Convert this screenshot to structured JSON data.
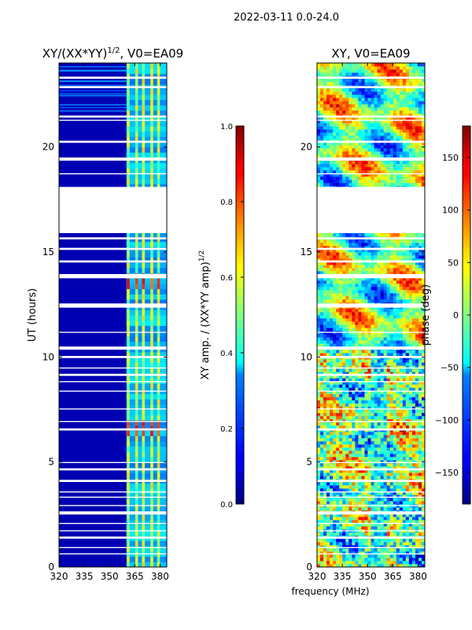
{
  "suptitle": "2022-03-11 0.0-24.0",
  "chart_data": [
    {
      "type": "heatmap",
      "title": "XY/(XX*YY)",
      "title_exponent": "1/2",
      "title_suffix": ", V0=EA09",
      "xlabel": "",
      "ylabel": "UT (hours)",
      "xlim": [
        320,
        384
      ],
      "ylim": [
        0,
        24
      ],
      "xticks": [
        "320",
        "335",
        "350",
        "365",
        "380"
      ],
      "xtick_values": [
        320,
        335,
        350,
        365,
        380
      ],
      "yticks": [
        "0",
        "5",
        "10",
        "15",
        "20"
      ],
      "ytick_values": [
        0,
        5,
        10,
        15,
        20
      ],
      "background_value": 0.05,
      "active_band_mhz": [
        360,
        384
      ],
      "active_band_value": 0.3,
      "bright_channel_columns_mhz": [
        361,
        366,
        370,
        375,
        379
      ],
      "bright_channel_value": 0.55,
      "hot_spot_hours": [
        6.6,
        13.4
      ],
      "colorbar": {
        "label": "XY amp. / (XX*YY amp)",
        "label_exponent": "1/2",
        "range": [
          0.0,
          1.0
        ],
        "ticks": [
          "0.0",
          "0.2",
          "0.4",
          "0.6",
          "0.8",
          "1.0"
        ],
        "tick_values": [
          0.0,
          0.2,
          0.4,
          0.6,
          0.8,
          1.0
        ]
      }
    },
    {
      "type": "heatmap",
      "title": "XY, V0=EA09",
      "xlabel": "frequency (MHz)",
      "ylabel": "",
      "xlim": [
        320,
        384
      ],
      "ylim": [
        0,
        24
      ],
      "xticks": [
        "320",
        "335",
        "350",
        "365",
        "380"
      ],
      "xtick_values": [
        320,
        335,
        350,
        365,
        380
      ],
      "yticks": [
        "0",
        "5",
        "10",
        "15",
        "20"
      ],
      "ytick_values": [
        0,
        5,
        10,
        15,
        20
      ],
      "colorbar": {
        "label": "phase (deg)",
        "range": [
          -180,
          180
        ],
        "ticks": [
          "150",
          "100",
          "50",
          "0",
          "−50",
          "−100",
          "−150"
        ],
        "tick_values": [
          150,
          100,
          50,
          0,
          -50,
          -100,
          -150
        ]
      }
    }
  ],
  "flagged_gaps_hours": [
    [
      18.1,
      15.9
    ],
    [
      23.35,
      23.25
    ],
    [
      22.9,
      22.8
    ],
    [
      21.5,
      21.4
    ],
    [
      21.3,
      21.25
    ],
    [
      20.3,
      20.2
    ],
    [
      19.5,
      19.35
    ],
    [
      18.75,
      18.7
    ],
    [
      15.7,
      15.6
    ],
    [
      15.2,
      15.1
    ],
    [
      14.6,
      14.5
    ],
    [
      13.95,
      13.75
    ],
    [
      12.55,
      12.35
    ],
    [
      11.2,
      11.15
    ],
    [
      10.5,
      10.35
    ],
    [
      10.05,
      9.95
    ],
    [
      9.5,
      9.45
    ],
    [
      9.2,
      9.1
    ],
    [
      8.85,
      8.8
    ],
    [
      8.4,
      8.35
    ],
    [
      7.55,
      7.5
    ],
    [
      6.95,
      6.9
    ],
    [
      6.6,
      6.5
    ],
    [
      5.0,
      4.95
    ],
    [
      4.7,
      4.6
    ],
    [
      4.15,
      4.05
    ],
    [
      3.6,
      3.55
    ],
    [
      3.35,
      3.3
    ],
    [
      2.95,
      2.9
    ],
    [
      2.65,
      2.5
    ],
    [
      2.1,
      2.05
    ],
    [
      1.75,
      1.7
    ],
    [
      1.45,
      1.35
    ],
    [
      0.95,
      0.9
    ],
    [
      0.65,
      0.6
    ]
  ]
}
